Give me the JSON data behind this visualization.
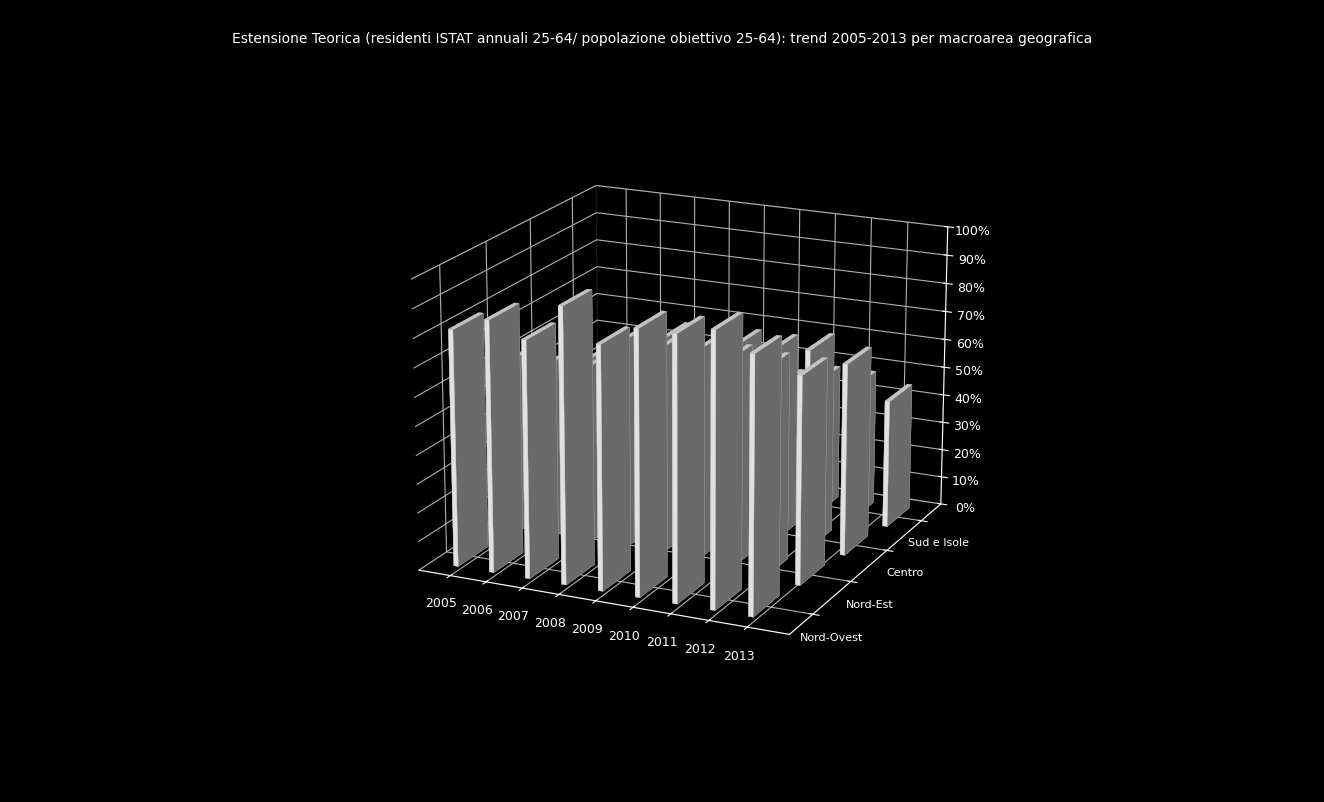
{
  "title": "Estensione Teorica (residenti ISTAT annuali 25-64/ popolazione obiettivo 25-64): trend 2005-2013 per macroarea geografica",
  "years": [
    2005,
    2006,
    2007,
    2008,
    2009,
    2010,
    2011,
    2012,
    2013
  ],
  "regions": [
    "Nord-Ovest",
    "Nord-Est",
    "Centro",
    "Sud e Isole"
  ],
  "values": {
    "Nord-Ovest": [
      82,
      87,
      82,
      95,
      84,
      91,
      91,
      94,
      88
    ],
    "Nord-Est": [
      62,
      62,
      62,
      73,
      72,
      73,
      73,
      72,
      72
    ],
    "Centro": [
      52,
      57,
      60,
      67,
      65,
      68,
      68,
      70,
      67
    ],
    "Sud e Isole": [
      38,
      35,
      38,
      45,
      43,
      45,
      48,
      48,
      45
    ]
  },
  "bar_color": "#ffffff",
  "background_color": "#000000",
  "grid_color": "#ffffff",
  "ylim": [
    0,
    100
  ],
  "yticks": [
    0,
    10,
    20,
    30,
    40,
    50,
    60,
    70,
    80,
    90,
    100
  ]
}
